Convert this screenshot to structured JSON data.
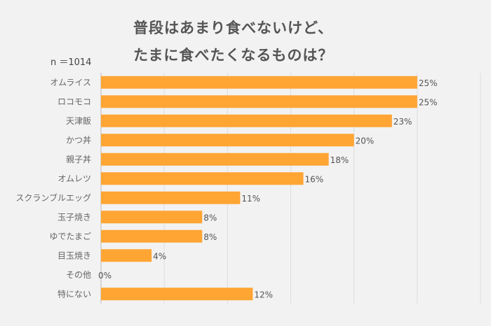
{
  "chart_data": {
    "type": "bar",
    "orientation": "horizontal",
    "title_lines": [
      "普段はあまり食べないけど、",
      "たまに食べたくなるものは？"
    ],
    "subtitle": "n ＝1014",
    "categories": [
      "オムライス",
      "ロコモコ",
      "天津飯",
      "かつ丼",
      "親子丼",
      "オムレツ",
      "スクランブルエッグ",
      "玉子焼き",
      "ゆでたまご",
      "目玉焼き",
      "その他",
      "特にない"
    ],
    "values": [
      25,
      25,
      23,
      20,
      18,
      16,
      11,
      8,
      8,
      4,
      0,
      12
    ],
    "value_labels": [
      "25%",
      "25%",
      "23%",
      "20%",
      "18%",
      "16%",
      "11%",
      "8%",
      "8%",
      "4%",
      "0%",
      "12%"
    ],
    "unit": "%",
    "xlim": [
      0,
      30
    ],
    "grid_step": 5,
    "grid": true,
    "legend": "none",
    "colors": {
      "bar": "#ffa534",
      "background": "#f2f2f2",
      "grid": "#dddddd"
    }
  }
}
